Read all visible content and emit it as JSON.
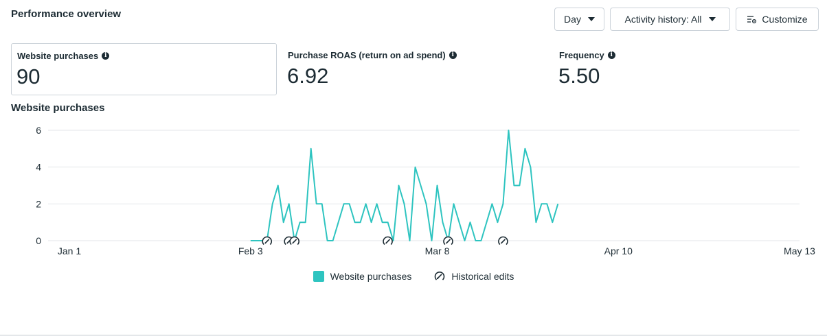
{
  "header": {
    "title": "Performance overview",
    "day_label": "Day",
    "activity_label": "Activity history: All",
    "customize_label": "Customize"
  },
  "metrics": [
    {
      "label": "Website purchases",
      "value": "90"
    },
    {
      "label": "Purchase ROAS (return on ad spend)",
      "value": "6.92"
    },
    {
      "label": "Frequency",
      "value": "5.50"
    }
  ],
  "colors": {
    "series": "#2ec4c0",
    "grid": "#e3e6e9",
    "text": "#1c2b33"
  },
  "chart_data": {
    "type": "line",
    "title": "Website purchases",
    "xlabel": "",
    "ylabel": "",
    "ylim": [
      0,
      6
    ],
    "yticks": [
      "0",
      "2",
      "4",
      "6"
    ],
    "xtick_labels": [
      "Jan 1",
      "Feb 3",
      "Mar 8",
      "Apr 10",
      "May 13"
    ],
    "grid": true,
    "legend": "bottom-center",
    "series": [
      {
        "name": "Website purchases",
        "start": "Feb 3",
        "values": [
          0,
          0,
          0,
          0,
          2,
          3,
          1,
          2,
          0,
          1,
          1,
          5,
          2,
          2,
          0,
          0,
          1,
          2,
          2,
          1,
          1,
          2,
          1,
          2,
          1,
          1,
          0,
          3,
          2,
          0,
          4,
          3,
          2,
          0,
          3,
          1,
          0,
          2,
          1,
          0,
          1,
          0,
          0,
          1,
          2,
          1,
          2,
          6,
          3,
          3,
          5,
          4,
          1,
          2,
          2,
          1,
          2
        ]
      }
    ],
    "historical_edits": [
      "Feb 6",
      "Feb 10",
      "Feb 11",
      "Feb 28",
      "Mar 10",
      "Mar 20"
    ],
    "legend_items": [
      "Website purchases",
      "Historical edits"
    ]
  }
}
